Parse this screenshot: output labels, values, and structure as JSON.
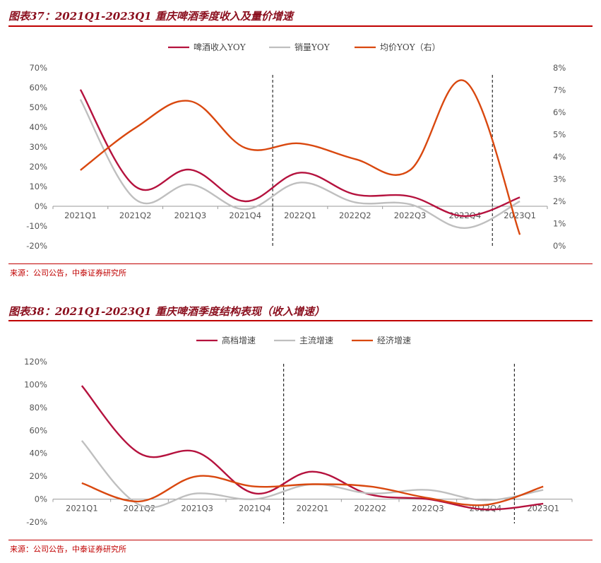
{
  "figures": [
    {
      "title": "图表37：2021Q1-2023Q1 重庆啤酒季度收入及量价增速",
      "source": "来源：公司公告，中泰证券研究所"
    },
    {
      "title": "图表38：2021Q1-2023Q1 重庆啤酒季度结构表现（收入增速）",
      "source": "来源：公司公告，中泰证券研究所"
    }
  ],
  "colors": {
    "crimson": "#b5123e",
    "gray": "#bfbfbf",
    "orange": "#d9480f",
    "title_red": "#8b0f1e"
  },
  "chart_data": [
    {
      "type": "line",
      "categories": [
        "2021Q1",
        "2021Q2",
        "2021Q3",
        "2021Q4",
        "2022Q1",
        "2022Q2",
        "2022Q3",
        "2022Q4",
        "2023Q1"
      ],
      "series": [
        {
          "name": "啤酒收入YOY",
          "axis": "left",
          "color": "#b5123e",
          "values": [
            59,
            10,
            18.5,
            2.5,
            17,
            6,
            5,
            -5,
            4.5
          ]
        },
        {
          "name": "销量YOY",
          "axis": "left",
          "color": "#bfbfbf",
          "values": [
            54,
            3.5,
            11,
            -1.5,
            12,
            2,
            1,
            -11,
            2.5
          ]
        },
        {
          "name": "均价YOY（右）",
          "axis": "right",
          "color": "#d9480f",
          "values": [
            3.4,
            5.3,
            6.5,
            4.4,
            4.6,
            3.9,
            3.4,
            7.4,
            0.5
          ]
        }
      ],
      "left_axis": {
        "min": -20,
        "max": 70,
        "step": 10,
        "ticks": [
          "70%",
          "60%",
          "50%",
          "40%",
          "30%",
          "20%",
          "10%",
          "0%",
          "-10%",
          "-20%"
        ]
      },
      "right_axis": {
        "min": 0,
        "max": 8,
        "step": 1,
        "ticks": [
          "8%",
          "7%",
          "6%",
          "5%",
          "4%",
          "3%",
          "2%",
          "1%",
          "0%"
        ]
      },
      "markers": [
        "2021Q4|2022Q1",
        "2022Q4|2023Q1"
      ],
      "legend_position": "top-center"
    },
    {
      "type": "line",
      "categories": [
        "2021Q1",
        "2021Q2",
        "2021Q3",
        "2021Q4",
        "2022Q1",
        "2022Q2",
        "2022Q3",
        "2022Q4",
        "2023Q1"
      ],
      "series": [
        {
          "name": "高档增速",
          "color": "#b5123e",
          "values": [
            99,
            40,
            41,
            5,
            24,
            4,
            0,
            -9,
            -4
          ]
        },
        {
          "name": "主流增速",
          "color": "#bfbfbf",
          "values": [
            51,
            -5,
            5,
            0,
            13,
            5,
            8,
            -1,
            8
          ]
        },
        {
          "name": "经济增速",
          "color": "#d9480f",
          "values": [
            14,
            -2,
            20,
            11,
            13,
            11,
            1,
            -5,
            11
          ]
        }
      ],
      "left_axis": {
        "min": -20,
        "max": 120,
        "step": 20,
        "ticks": [
          "120%",
          "100%",
          "80%",
          "60%",
          "40%",
          "20%",
          "0%",
          "-20%"
        ]
      },
      "markers": [
        "2021Q4|2022Q1",
        "2022Q4|2023Q1"
      ],
      "legend_position": "top-center"
    }
  ]
}
